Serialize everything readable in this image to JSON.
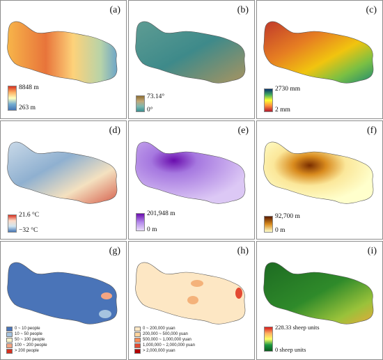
{
  "panels": [
    {
      "label": "(a)",
      "max": "8848 m",
      "min": "263 m",
      "colors": [
        "#d7301f",
        "#fdae61",
        "#ffffbf",
        "#74add1",
        "#4575b4"
      ]
    },
    {
      "label": "(b)",
      "max": "73.14°",
      "min": "0°",
      "colors": [
        "#8c6d31",
        "#c2a878",
        "#7fb8b0",
        "#3b8f8f"
      ]
    },
    {
      "label": "(c)",
      "max": "2730 mm",
      "min": "2 mm",
      "colors": [
        "#08306b",
        "#41ab5d",
        "#ffff33",
        "#fd8d3c",
        "#b2182b"
      ]
    },
    {
      "label": "(d)",
      "max": "21.6 °C",
      "min": "−32 °C",
      "colors": [
        "#d7301f",
        "#fddbc7",
        "#d1e5f0",
        "#4575b4"
      ]
    },
    {
      "label": "(e)",
      "max": "201,948 m",
      "min": "0 m",
      "colors": [
        "#6a0dad",
        "#b388eb",
        "#e8dcf8"
      ]
    },
    {
      "label": "(f)",
      "max": "92,700 m",
      "min": "0 m",
      "colors": [
        "#5a1a00",
        "#d98b1e",
        "#ffffcc"
      ]
    },
    {
      "label": "(g)",
      "legend": [
        {
          "text": "0 ~ 10 people",
          "color": "#4a74b8"
        },
        {
          "text": "10 ~ 50 people",
          "color": "#a6c4e0"
        },
        {
          "text": "50 ~ 100 people",
          "color": "#f5f0c8"
        },
        {
          "text": "100 ~ 200 people",
          "color": "#f4a582"
        },
        {
          "text": "> 200 people",
          "color": "#d6301f"
        }
      ]
    },
    {
      "label": "(h)",
      "legend": [
        {
          "text": "0 ~ 200,000 yuan",
          "color": "#fde7c4"
        },
        {
          "text": "200,000 ~ 500,000 yuan",
          "color": "#fdd49e"
        },
        {
          "text": "500,000 ~ 1,000,000 yuan",
          "color": "#fc8d59"
        },
        {
          "text": "1,000,000 ~ 2,000,000 yuan",
          "color": "#e34a33"
        },
        {
          "text": "> 2,000,000 yuan",
          "color": "#b30000"
        }
      ]
    },
    {
      "label": "(i)",
      "max": "228.33 sheep units",
      "min": "0   sheep units",
      "colors": [
        "#d7191c",
        "#fdae61",
        "#ffff66",
        "#1a9641",
        "#0b5a1e"
      ]
    }
  ]
}
